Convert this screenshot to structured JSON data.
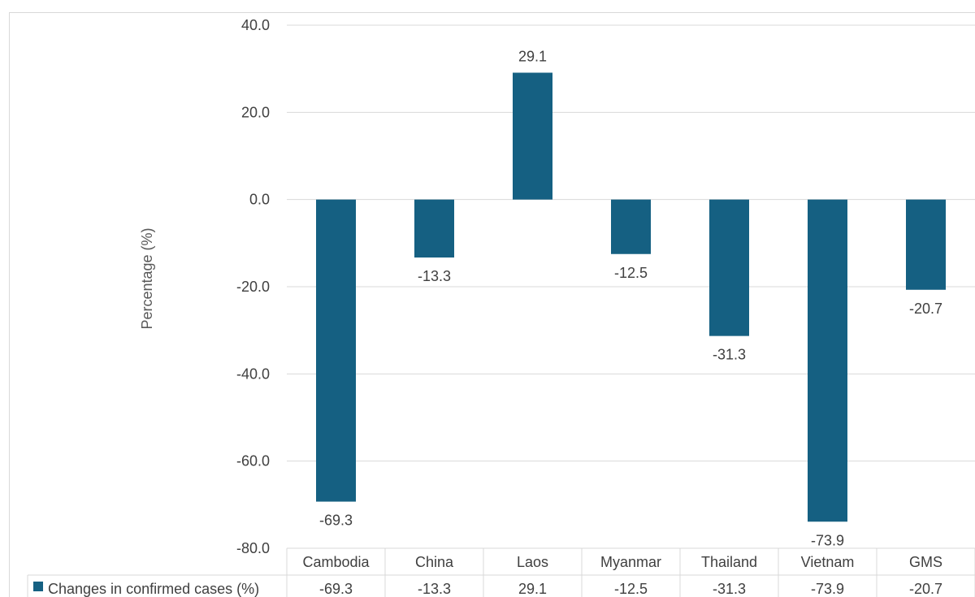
{
  "chart_data": {
    "type": "bar",
    "categories": [
      "Cambodia",
      "China",
      "Laos",
      "Myanmar",
      "Thailand",
      "Vietnam",
      "GMS"
    ],
    "series": [
      {
        "name": "Changes in confirmed cases (%)",
        "values": [
          -69.3,
          -13.3,
          29.1,
          -12.5,
          -31.3,
          -73.9,
          -20.7
        ],
        "value_labels": [
          "-69.3",
          "-13.3",
          "29.1",
          "-12.5",
          "-31.3",
          "-73.9",
          "-20.7"
        ]
      }
    ],
    "xlabel": "",
    "ylabel": "Percentage (%)",
    "ylim": [
      -80,
      40
    ],
    "yticks": [
      40,
      20,
      0,
      -20,
      -40,
      -60,
      -80
    ],
    "ytick_labels": [
      "40.0",
      "20.0",
      "0.0",
      "-20.0",
      "-40.0",
      "-60.0",
      "-80.0"
    ],
    "grid": true,
    "legend": "bottom-left, inside data table",
    "data_table": true,
    "colors": {
      "bar": "#156082",
      "grid": "#d9d9d9",
      "text": "#404040"
    }
  }
}
